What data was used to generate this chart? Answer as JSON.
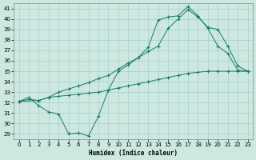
{
  "xlabel": "Humidex (Indice chaleur)",
  "xlim": [
    -0.5,
    23.5
  ],
  "ylim": [
    28.5,
    41.5
  ],
  "xticks": [
    0,
    1,
    2,
    3,
    4,
    5,
    6,
    7,
    8,
    9,
    10,
    11,
    12,
    13,
    14,
    15,
    16,
    17,
    18,
    19,
    20,
    21,
    22,
    23
  ],
  "yticks": [
    29,
    30,
    31,
    32,
    33,
    34,
    35,
    36,
    37,
    38,
    39,
    40,
    41
  ],
  "line_color": "#1a7a6e",
  "bg_color": "#cce8e0",
  "grid_color": "#aacfc8",
  "line1_x": [
    0,
    1,
    2,
    3,
    4,
    5,
    6,
    7,
    8,
    9,
    10,
    11,
    12,
    13,
    14,
    15,
    16,
    17,
    18,
    19,
    20,
    21,
    22,
    23
  ],
  "line1_y": [
    32.1,
    32.5,
    31.7,
    31.1,
    30.9,
    29.0,
    29.1,
    28.8,
    30.7,
    33.2,
    35.0,
    35.6,
    36.3,
    37.3,
    39.9,
    40.2,
    40.3,
    41.2,
    40.3,
    39.1,
    37.4,
    36.7,
    35.1,
    35.0
  ],
  "line2_x": [
    0,
    2,
    3,
    4,
    5,
    6,
    7,
    8,
    9,
    10,
    11,
    12,
    13,
    14,
    15,
    16,
    17,
    18,
    19,
    20,
    21,
    22,
    23
  ],
  "line2_y": [
    32.1,
    32.2,
    32.5,
    33.0,
    33.3,
    33.6,
    33.9,
    34.3,
    34.6,
    35.2,
    35.8,
    36.3,
    36.9,
    37.4,
    39.1,
    40.0,
    40.9,
    40.2,
    39.2,
    39.0,
    37.4,
    35.5,
    35.0
  ],
  "line3_x": [
    0,
    1,
    2,
    3,
    4,
    5,
    6,
    7,
    8,
    9,
    10,
    11,
    12,
    13,
    14,
    15,
    16,
    17,
    18,
    19,
    20,
    21,
    22,
    23
  ],
  "line3_y": [
    32.1,
    32.3,
    32.2,
    32.5,
    32.6,
    32.7,
    32.8,
    32.9,
    33.0,
    33.2,
    33.4,
    33.6,
    33.8,
    34.0,
    34.2,
    34.4,
    34.6,
    34.8,
    34.9,
    35.0,
    35.0,
    35.0,
    35.0,
    35.0
  ]
}
